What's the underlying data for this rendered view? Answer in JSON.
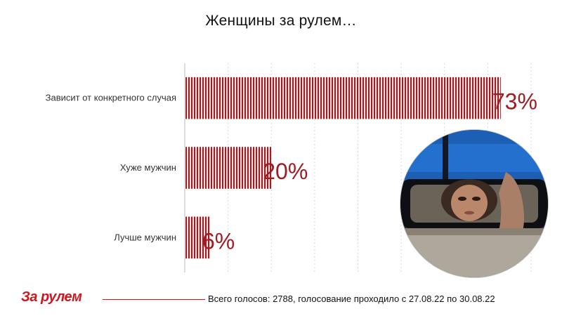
{
  "title": "Женщины за рулем…",
  "chart_data": {
    "type": "bar",
    "orientation": "horizontal",
    "title": "Женщины за рулем…",
    "categories": [
      "Зависит от конкретного случая",
      "Хуже  мужчин",
      "Лучше  мужчин"
    ],
    "values": [
      73,
      20,
      6
    ],
    "value_labels": [
      "73%",
      "20%",
      "6%"
    ],
    "xlim": [
      0,
      80
    ],
    "grid": "vertical dotted",
    "bar_color": "#9e1c22"
  },
  "image": {
    "subject": "woman-in-rearview-mirror-photo"
  },
  "footer": {
    "logo": "За рулем",
    "text": "Всего голосов: 2788, голосование проходило с 27.08.22 по 30.08.22"
  },
  "colors": {
    "accent": "#d0161e",
    "bar": "#9e1c22"
  }
}
